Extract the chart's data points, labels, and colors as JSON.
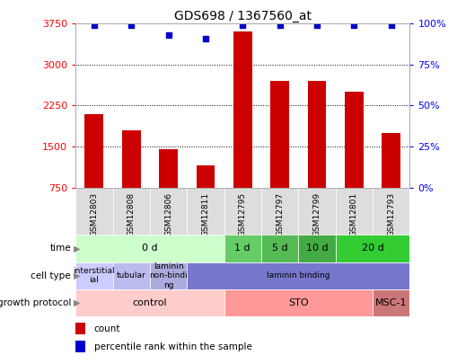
{
  "title": "GDS698 / 1367560_at",
  "samples": [
    "GSM12803",
    "GSM12808",
    "GSM12806",
    "GSM12811",
    "GSM12795",
    "GSM12797",
    "GSM12799",
    "GSM12801",
    "GSM12793"
  ],
  "counts": [
    2100,
    1800,
    1450,
    1150,
    3600,
    2700,
    2700,
    2500,
    1750
  ],
  "percentiles": [
    99,
    99,
    93,
    91,
    99,
    99,
    99,
    99,
    99
  ],
  "ylim_left": [
    750,
    3750
  ],
  "yticks_left": [
    750,
    1500,
    2250,
    3000,
    3750
  ],
  "ylim_right": [
    0,
    100
  ],
  "yticks_right": [
    0,
    25,
    50,
    75,
    100
  ],
  "bar_color": "#cc0000",
  "dot_color": "#0000cc",
  "bar_width": 0.5,
  "time_labels": [
    {
      "label": "0 d",
      "start": 0,
      "end": 4,
      "color": "#ccffcc"
    },
    {
      "label": "1 d",
      "start": 4,
      "end": 5,
      "color": "#66cc66"
    },
    {
      "label": "5 d",
      "start": 5,
      "end": 6,
      "color": "#55bb55"
    },
    {
      "label": "10 d",
      "start": 6,
      "end": 7,
      "color": "#44aa44"
    },
    {
      "label": "20 d",
      "start": 7,
      "end": 9,
      "color": "#33cc33"
    }
  ],
  "cell_type_labels": [
    {
      "label": "interstitial\nial",
      "start": 0,
      "end": 1,
      "color": "#ccccff"
    },
    {
      "label": "tubular",
      "start": 1,
      "end": 2,
      "color": "#bbbbee"
    },
    {
      "label": "laminin\nnon-bindi\nng",
      "start": 2,
      "end": 3,
      "color": "#aaaadd"
    },
    {
      "label": "laminin binding",
      "start": 3,
      "end": 9,
      "color": "#7777cc"
    }
  ],
  "growth_protocol_labels": [
    {
      "label": "control",
      "start": 0,
      "end": 4,
      "color": "#ffcccc"
    },
    {
      "label": "STO",
      "start": 4,
      "end": 8,
      "color": "#ff9999"
    },
    {
      "label": "MSC-1",
      "start": 8,
      "end": 9,
      "color": "#cc7777"
    }
  ],
  "row_labels": [
    "time",
    "cell type",
    "growth protocol"
  ],
  "legend_items": [
    {
      "color": "#cc0000",
      "label": "count"
    },
    {
      "color": "#0000cc",
      "label": "percentile rank within the sample"
    }
  ],
  "xtick_bg": "#dddddd",
  "spine_color": "#aaaaaa"
}
